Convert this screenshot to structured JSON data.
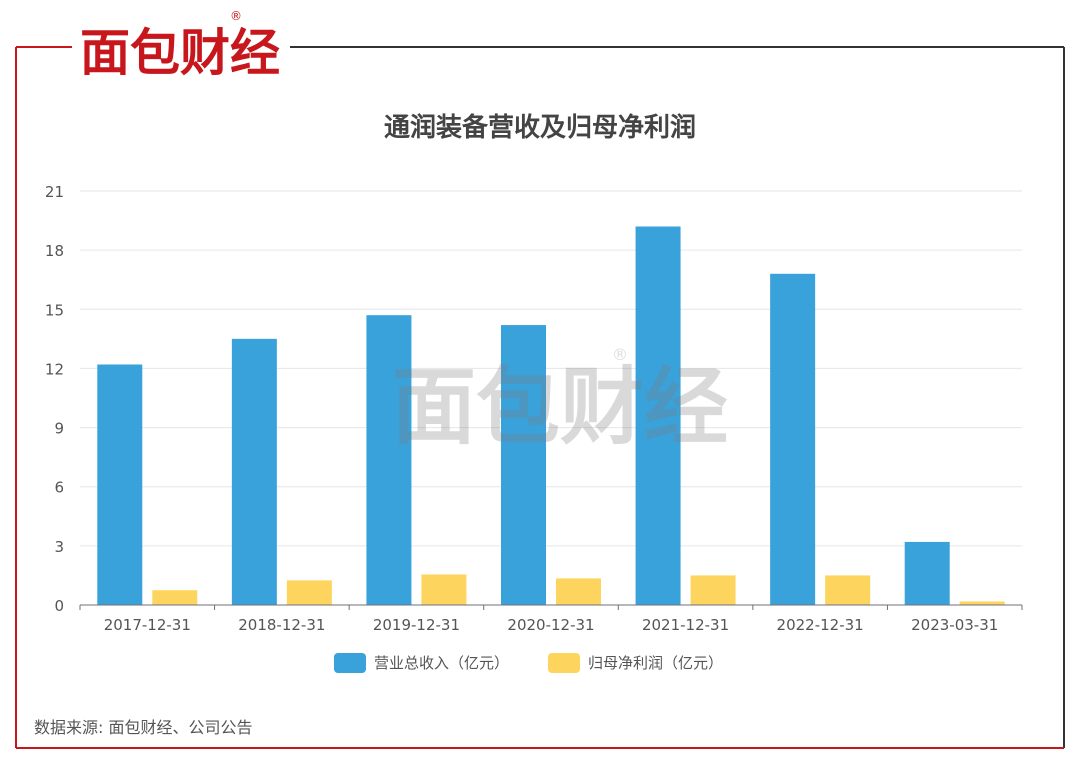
{
  "logo": {
    "text": "面包财经",
    "registered": "®",
    "color": "#c8161d"
  },
  "watermark": {
    "text": "面包财经",
    "registered": "®"
  },
  "source": "数据来源: 面包财经、公司公告",
  "chart_data": {
    "type": "bar",
    "title": "通润装备营收及归母净利润",
    "categories": [
      "2017-12-31",
      "2018-12-31",
      "2019-12-31",
      "2020-12-31",
      "2021-12-31",
      "2022-12-31",
      "2023-03-31"
    ],
    "series": [
      {
        "name": "营业总收入（亿元）",
        "color": "#3aa2db",
        "values": [
          12.2,
          13.5,
          14.7,
          14.2,
          19.2,
          16.8,
          3.2
        ]
      },
      {
        "name": "归母净利润（亿元）",
        "color": "#fdd55e",
        "values": [
          0.75,
          1.25,
          1.55,
          1.35,
          1.5,
          1.5,
          0.18
        ]
      }
    ],
    "ylim": [
      0,
      21
    ],
    "yticks": [
      "0",
      "3",
      "6",
      "9",
      "12",
      "15",
      "18",
      "21"
    ],
    "grid": true,
    "legend": "bottom"
  }
}
